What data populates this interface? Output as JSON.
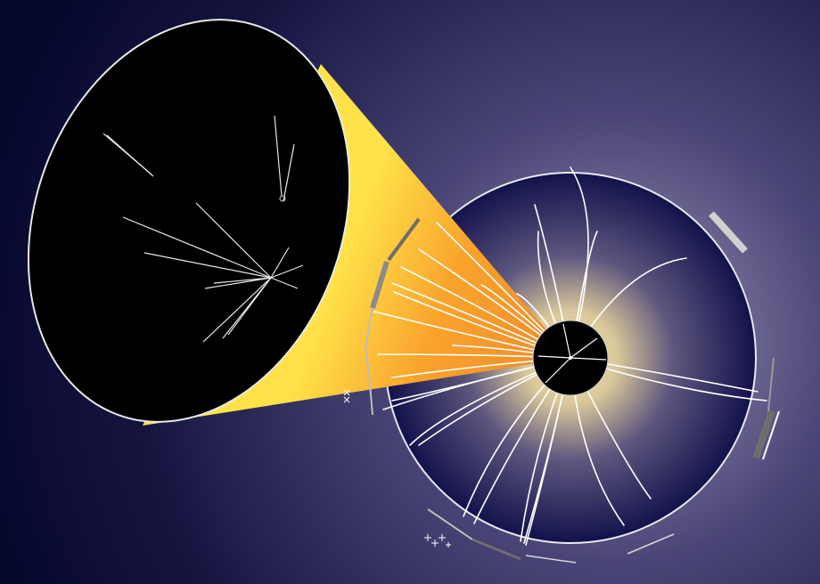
{
  "scene": {
    "subject": "particle-collision-event-display",
    "colors": {
      "background_dark": "#07082e",
      "background_glow": "#9b93b5",
      "cone_light": "#ffe24a",
      "cone_dark": "#f08a2a",
      "disk_core": "#f1e7b4",
      "disk_edge": "#10104a",
      "inset_fill": "#000000",
      "track": "#ffffff",
      "detector_block_light": "#d0d0d0",
      "detector_block_dark": "#6e6e6e"
    },
    "icons": [
      "collision-vertex-icon",
      "cross-marker-icon"
    ]
  }
}
